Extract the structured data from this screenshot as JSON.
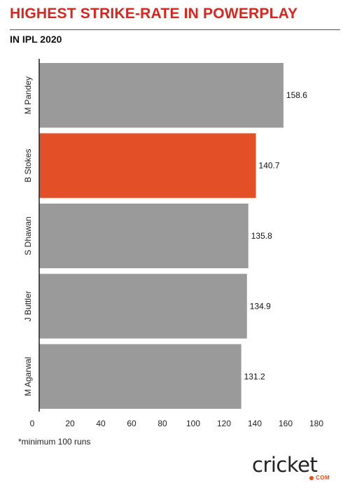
{
  "header": {
    "title": "HIGHEST STRIKE-RATE IN POWERPLAY",
    "subtitle": "IN IPL 2020"
  },
  "chart_data": {
    "type": "bar",
    "orientation": "horizontal",
    "categories": [
      "M Pandey",
      "B Stokes",
      "S Dhawan",
      "J Buttler",
      "M Agarwal"
    ],
    "values": [
      158.6,
      140.7,
      135.8,
      134.9,
      131.2
    ],
    "value_labels": [
      "158.6",
      "140.7",
      "135.8",
      "134.9",
      "131.2"
    ],
    "highlight_index": 1,
    "xlim": [
      0,
      180
    ],
    "xticks": [
      "0",
      "20",
      "40",
      "60",
      "80",
      "100",
      "120",
      "140",
      "160",
      "180"
    ],
    "xlabel": "",
    "ylabel": "",
    "grid": false,
    "colors": {
      "bar": "#9a9a9a",
      "highlight": "#e34f26",
      "axis": "#222222"
    }
  },
  "footnote": "*minimum 100 runs",
  "logo": {
    "wordmark": "cricket",
    "domain": "COM",
    "accent": "#e84e1b"
  }
}
